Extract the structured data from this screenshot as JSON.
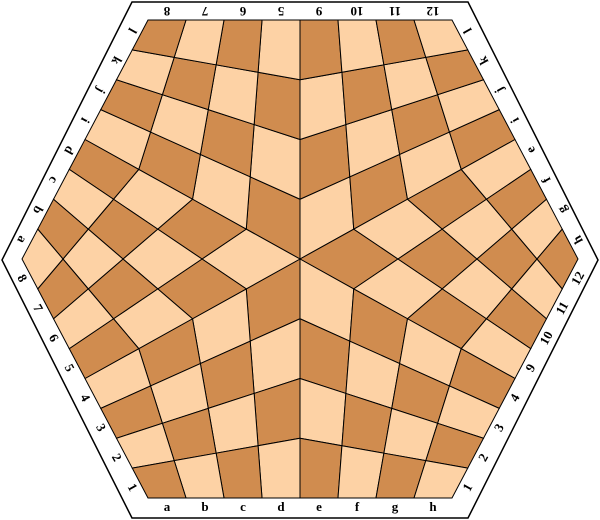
{
  "board": {
    "top": [
      "8",
      "7",
      "6",
      "5",
      "9",
      "10",
      "11",
      "12"
    ],
    "upper_right": [
      "l",
      "k",
      "j",
      "i",
      "e",
      "f",
      "g",
      "h"
    ],
    "lower_right": [
      "12",
      "11",
      "10",
      "9",
      "4",
      "3",
      "2",
      "1"
    ],
    "bottom": [
      "a",
      "b",
      "c",
      "d",
      "e",
      "f",
      "g",
      "h"
    ],
    "lower_left": [
      "1",
      "2",
      "3",
      "4",
      "5",
      "6",
      "7",
      "8"
    ],
    "upper_left": [
      "a",
      "b",
      "c",
      "d",
      "i",
      "j",
      "k",
      "l"
    ]
  }
}
